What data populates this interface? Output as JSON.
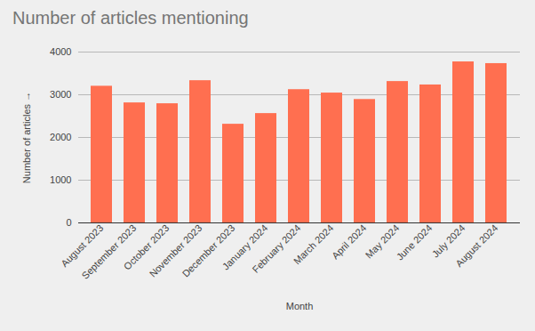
{
  "chart_data": {
    "type": "bar",
    "title": "Number of articles mentioning",
    "xlabel": "Month",
    "ylabel": "Number of articles",
    "categories": [
      "August 2023",
      "September 2023",
      "October 2023",
      "November 2023",
      "December 2023",
      "January 2024",
      "February 2024",
      "March 2024",
      "April 2024",
      "May 2024",
      "June 2024",
      "July 2024",
      "August 2024"
    ],
    "values": [
      3200,
      2810,
      2790,
      3330,
      2310,
      2560,
      3120,
      3040,
      2890,
      3310,
      3230,
      3770,
      3730
    ],
    "color": "#ff6f50",
    "ylim": [
      0,
      4000
    ],
    "yticks": [
      0,
      1000,
      2000,
      3000,
      4000
    ],
    "grid": true
  }
}
